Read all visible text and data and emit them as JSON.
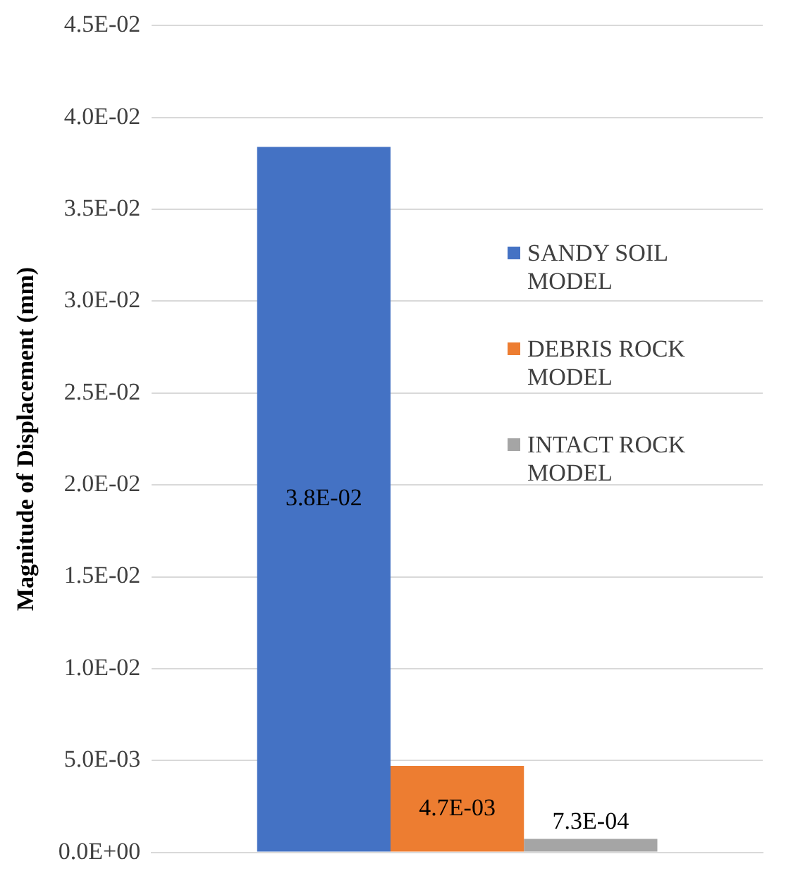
{
  "chart_data": {
    "type": "bar",
    "ylabel": "Magnitude of Displacement (mm)",
    "categories": [
      null
    ],
    "series": [
      {
        "name": "SANDY SOIL MODEL",
        "color": "#4472c4",
        "values": [
          0.0384
        ],
        "value_labels": [
          "3.8E-02"
        ]
      },
      {
        "name": "DEBRIS ROCK MODEL",
        "color": "#ed7d31",
        "values": [
          0.0047
        ],
        "value_labels": [
          "4.7E-03"
        ]
      },
      {
        "name": "INTACT ROCK MODEL",
        "color": "#a5a5a5",
        "values": [
          0.00073
        ],
        "value_labels": [
          "7.3E-04"
        ]
      }
    ],
    "ylim": [
      0,
      0.045
    ],
    "yticks": [
      {
        "value": 0,
        "label": "0.0E+00"
      },
      {
        "value": 0.005,
        "label": "5.0E-03"
      },
      {
        "value": 0.01,
        "label": "1.0E-02"
      },
      {
        "value": 0.015,
        "label": "1.5E-02"
      },
      {
        "value": 0.02,
        "label": "2.0E-02"
      },
      {
        "value": 0.025,
        "label": "2.5E-02"
      },
      {
        "value": 0.03,
        "label": "3.0E-02"
      },
      {
        "value": 0.035,
        "label": "3.5E-02"
      },
      {
        "value": 0.04,
        "label": "4.0E-02"
      },
      {
        "value": 0.045,
        "label": "4.5E-02"
      }
    ],
    "grid": "y",
    "legend": "right"
  }
}
